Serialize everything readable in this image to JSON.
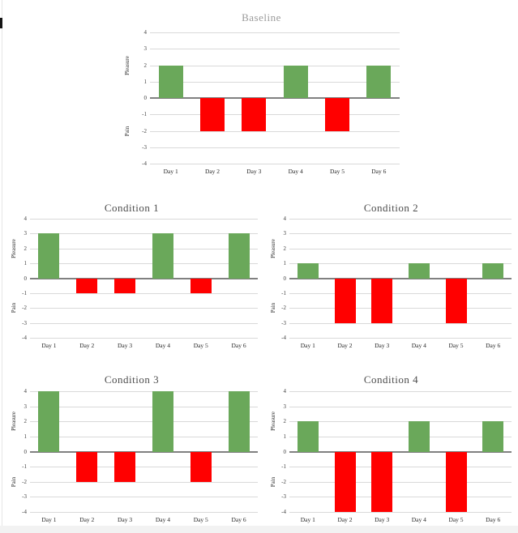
{
  "page": {
    "background": "#ffffff",
    "edge_strip_color": "#f2f2f2",
    "cursor_mark": "text-cursor"
  },
  "chart_data": [
    {
      "id": "baseline",
      "type": "bar",
      "title": "Baseline",
      "title_color": "#9b9b9b",
      "categories": [
        "Day 1",
        "Day 2",
        "Day 3",
        "Day 4",
        "Day 5",
        "Day 6"
      ],
      "values": [
        2,
        -2,
        -2,
        2,
        -2,
        2
      ],
      "ylabel_positive": "Pleasure",
      "ylabel_negative": "Pain",
      "ylim": [
        -4,
        4
      ],
      "yticks": [
        4,
        3,
        2,
        1,
        0,
        -1,
        -2,
        -3,
        -4
      ],
      "grid": "horizontal",
      "legend": "none",
      "bar_color_positive": "#6aa85a",
      "bar_color_negative": "#ff0000",
      "gridline_color": "#d9d9d9",
      "zero_line_color": "#808080"
    },
    {
      "id": "condition1",
      "type": "bar",
      "title": "Condition 1",
      "title_color": "#4d4d4d",
      "categories": [
        "Day 1",
        "Day 2",
        "Day 3",
        "Day 4",
        "Day 5",
        "Day 6"
      ],
      "values": [
        3,
        -1,
        -1,
        3,
        -1,
        3
      ],
      "ylabel_positive": "Pleasure",
      "ylabel_negative": "Pain",
      "ylim": [
        -4,
        4
      ],
      "yticks": [
        4,
        3,
        2,
        1,
        0,
        -1,
        -2,
        -3,
        -4
      ],
      "grid": "horizontal",
      "legend": "none",
      "bar_color_positive": "#6aa85a",
      "bar_color_negative": "#ff0000",
      "gridline_color": "#d9d9d9",
      "zero_line_color": "#808080"
    },
    {
      "id": "condition2",
      "type": "bar",
      "title": "Condition 2",
      "title_color": "#4d4d4d",
      "categories": [
        "Day 1",
        "Day 2",
        "Day 3",
        "Day 4",
        "Day 5",
        "Day 6"
      ],
      "values": [
        1,
        -3,
        -3,
        1,
        -3,
        1
      ],
      "ylabel_positive": "Pleasure",
      "ylabel_negative": "Pain",
      "ylim": [
        -4,
        4
      ],
      "yticks": [
        4,
        3,
        2,
        1,
        0,
        -1,
        -2,
        -3,
        -4
      ],
      "grid": "horizontal",
      "legend": "none",
      "bar_color_positive": "#6aa85a",
      "bar_color_negative": "#ff0000",
      "gridline_color": "#d9d9d9",
      "zero_line_color": "#808080"
    },
    {
      "id": "condition3",
      "type": "bar",
      "title": "Condition 3",
      "title_color": "#4d4d4d",
      "categories": [
        "Day 1",
        "Day 2",
        "Day 3",
        "Day 4",
        "Day 5",
        "Day 6"
      ],
      "values": [
        4,
        -2,
        -2,
        4,
        -2,
        4
      ],
      "ylabel_positive": "Pleasure",
      "ylabel_negative": "Pain",
      "ylim": [
        -4,
        4
      ],
      "yticks": [
        4,
        3,
        2,
        1,
        0,
        -1,
        -2,
        -3,
        -4
      ],
      "grid": "horizontal",
      "legend": "none",
      "bar_color_positive": "#6aa85a",
      "bar_color_negative": "#ff0000",
      "gridline_color": "#d9d9d9",
      "zero_line_color": "#808080"
    },
    {
      "id": "condition4",
      "type": "bar",
      "title": "Condition 4",
      "title_color": "#4d4d4d",
      "categories": [
        "Day 1",
        "Day 2",
        "Day 3",
        "Day 4",
        "Day 5",
        "Day 6"
      ],
      "values": [
        2,
        -4,
        -4,
        2,
        -4,
        2
      ],
      "ylabel_positive": "Pleasure",
      "ylabel_negative": "Pain",
      "ylim": [
        -4,
        4
      ],
      "yticks": [
        4,
        3,
        2,
        1,
        0,
        -1,
        -2,
        -3,
        -4
      ],
      "grid": "horizontal",
      "legend": "none",
      "bar_color_positive": "#6aa85a",
      "bar_color_negative": "#ff0000",
      "gridline_color": "#d9d9d9",
      "zero_line_color": "#808080"
    }
  ]
}
